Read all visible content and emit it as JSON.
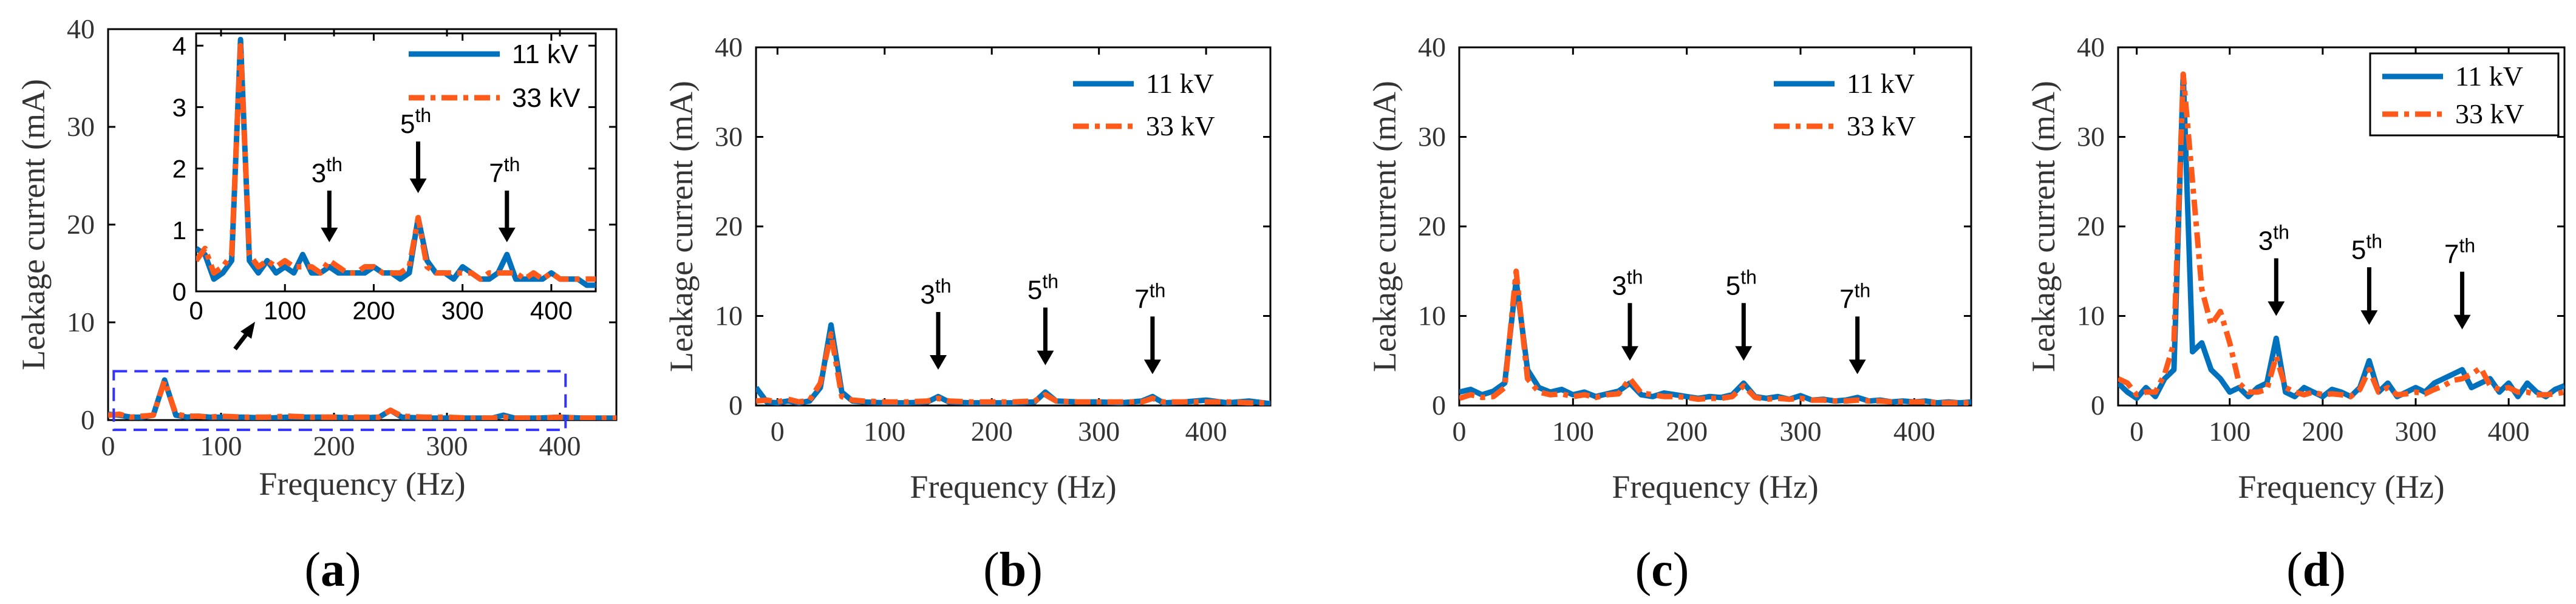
{
  "colors": {
    "kv11": "#0072bd",
    "kv33": "#ff5a1a",
    "zoom_box": "#3333ff"
  },
  "chart_data": [
    {
      "panel": "(a)",
      "type": "line",
      "xlabel": "Frequency (Hz)",
      "ylabel": "Leakage current (mA)",
      "xlim": [
        0,
        450
      ],
      "ylim": [
        0,
        40
      ],
      "xticks": [
        "0",
        "100",
        "200",
        "300",
        "400"
      ],
      "yticks": [
        "0",
        "10",
        "20",
        "30",
        "40"
      ],
      "legend": {
        "placement": "top-right"
      },
      "series": [
        {
          "name": "11 kV",
          "x": [
            0,
            10,
            20,
            30,
            40,
            50,
            60,
            70,
            80,
            90,
            100,
            120,
            140,
            160,
            180,
            200,
            220,
            240,
            250,
            260,
            280,
            300,
            320,
            340,
            350,
            360,
            380,
            400,
            420,
            450
          ],
          "values": [
            0.6,
            0.5,
            0.3,
            0.3,
            0.5,
            4.1,
            0.5,
            0.3,
            0.4,
            0.3,
            0.3,
            0.3,
            0.2,
            0.3,
            0.3,
            0.3,
            0.2,
            0.3,
            1.0,
            0.3,
            0.2,
            0.2,
            0.2,
            0.2,
            0.5,
            0.2,
            0.2,
            0.3,
            0.2,
            0.2
          ]
        },
        {
          "name": "33 kV",
          "x": [
            0,
            10,
            20,
            30,
            40,
            50,
            60,
            70,
            80,
            90,
            100,
            120,
            140,
            160,
            180,
            200,
            220,
            240,
            250,
            260,
            280,
            300,
            320,
            340,
            350,
            360,
            380,
            400,
            420,
            450
          ],
          "values": [
            0.5,
            0.6,
            0.3,
            0.4,
            0.5,
            4.0,
            0.6,
            0.4,
            0.4,
            0.3,
            0.4,
            0.3,
            0.3,
            0.4,
            0.3,
            0.3,
            0.3,
            0.3,
            1.0,
            0.4,
            0.3,
            0.3,
            0.2,
            0.2,
            0.3,
            0.2,
            0.2,
            0.3,
            0.2,
            0.2
          ]
        }
      ],
      "inset": {
        "xlim": [
          0,
          450
        ],
        "ylim": [
          0,
          4.2
        ],
        "xticks": [
          "0",
          "100",
          "200",
          "300",
          "400"
        ],
        "yticks": [
          "0",
          "1",
          "2",
          "3",
          "4"
        ],
        "series": [
          {
            "name": "11 kV",
            "x": [
              0,
              10,
              20,
              30,
              40,
              50,
              60,
              70,
              80,
              90,
              100,
              110,
              120,
              130,
              140,
              150,
              160,
              170,
              180,
              190,
              200,
              210,
              220,
              230,
              240,
              250,
              260,
              270,
              280,
              290,
              300,
              310,
              320,
              330,
              340,
              350,
              360,
              370,
              380,
              390,
              400,
              410,
              420,
              430,
              440,
              450
            ],
            "values": [
              0.7,
              0.6,
              0.2,
              0.3,
              0.5,
              4.1,
              0.5,
              0.3,
              0.5,
              0.3,
              0.4,
              0.3,
              0.6,
              0.3,
              0.3,
              0.4,
              0.3,
              0.3,
              0.3,
              0.3,
              0.4,
              0.3,
              0.3,
              0.2,
              0.3,
              1.2,
              0.5,
              0.3,
              0.3,
              0.2,
              0.4,
              0.3,
              0.2,
              0.2,
              0.3,
              0.6,
              0.2,
              0.2,
              0.2,
              0.2,
              0.3,
              0.2,
              0.2,
              0.2,
              0.1,
              0.1
            ]
          },
          {
            "name": "33 kV",
            "x": [
              0,
              10,
              20,
              30,
              40,
              50,
              60,
              70,
              80,
              90,
              100,
              110,
              120,
              130,
              140,
              150,
              160,
              170,
              180,
              190,
              200,
              210,
              220,
              230,
              240,
              250,
              260,
              270,
              280,
              290,
              300,
              310,
              320,
              330,
              340,
              350,
              360,
              370,
              380,
              390,
              400,
              410,
              420,
              430,
              440,
              450
            ],
            "values": [
              0.5,
              0.7,
              0.3,
              0.4,
              0.6,
              4.0,
              0.6,
              0.4,
              0.5,
              0.4,
              0.5,
              0.4,
              0.4,
              0.4,
              0.3,
              0.5,
              0.4,
              0.3,
              0.3,
              0.4,
              0.4,
              0.3,
              0.3,
              0.3,
              0.4,
              1.2,
              0.4,
              0.3,
              0.3,
              0.3,
              0.3,
              0.3,
              0.2,
              0.3,
              0.3,
              0.3,
              0.3,
              0.2,
              0.3,
              0.2,
              0.3,
              0.2,
              0.2,
              0.2,
              0.2,
              0.2
            ]
          }
        ],
        "annotations": [
          {
            "base": "3",
            "sup": "th",
            "x": 150,
            "y": 0.8
          },
          {
            "base": "5",
            "sup": "th",
            "x": 250,
            "y": 1.6
          },
          {
            "base": "7",
            "sup": "th",
            "x": 350,
            "y": 0.8
          }
        ]
      }
    },
    {
      "panel": "(b)",
      "type": "line",
      "xlabel": "Frequency (Hz)",
      "ylabel": "Leakage current (mA)",
      "xlim": [
        -20,
        460
      ],
      "ylim": [
        0,
        40
      ],
      "xticks": [
        "0",
        "100",
        "200",
        "300",
        "400"
      ],
      "yticks": [
        "0",
        "10",
        "20",
        "30",
        "40"
      ],
      "legend": {
        "placement": "top-right"
      },
      "series": [
        {
          "name": "11 kV",
          "x": [
            -20,
            -10,
            0,
            10,
            20,
            30,
            40,
            50,
            60,
            70,
            80,
            100,
            120,
            140,
            150,
            160,
            180,
            200,
            220,
            240,
            250,
            260,
            280,
            300,
            320,
            340,
            350,
            360,
            380,
            400,
            420,
            440,
            460
          ],
          "values": [
            2.0,
            0.4,
            0.3,
            0.5,
            0.3,
            0.5,
            2.0,
            9.0,
            1.5,
            0.5,
            0.4,
            0.3,
            0.3,
            0.4,
            1.0,
            0.4,
            0.3,
            0.3,
            0.3,
            0.4,
            1.5,
            0.5,
            0.4,
            0.4,
            0.3,
            0.5,
            1.0,
            0.3,
            0.4,
            0.6,
            0.3,
            0.5,
            0.2
          ]
        },
        {
          "name": "33 kV",
          "x": [
            -20,
            -10,
            0,
            10,
            20,
            30,
            40,
            50,
            60,
            70,
            80,
            100,
            120,
            140,
            150,
            160,
            180,
            200,
            220,
            240,
            250,
            260,
            280,
            300,
            320,
            340,
            350,
            360,
            380,
            400,
            420,
            440,
            460
          ],
          "values": [
            0.5,
            0.6,
            0.4,
            0.7,
            0.4,
            0.6,
            2.5,
            8.0,
            1.0,
            0.6,
            0.5,
            0.4,
            0.4,
            0.5,
            0.8,
            0.5,
            0.4,
            0.4,
            0.4,
            0.5,
            1.2,
            0.5,
            0.4,
            0.4,
            0.4,
            0.4,
            0.8,
            0.4,
            0.4,
            0.4,
            0.4,
            0.3,
            0.3
          ]
        }
      ],
      "annotations": [
        {
          "base": "3",
          "sup": "th",
          "x": 150,
          "y": 4
        },
        {
          "base": "5",
          "sup": "th",
          "x": 250,
          "y": 4.5
        },
        {
          "base": "7",
          "sup": "th",
          "x": 350,
          "y": 3.5
        }
      ]
    },
    {
      "panel": "(c)",
      "type": "line",
      "xlabel": "Frequency (Hz)",
      "ylabel": "Leakage current (mA)",
      "xlim": [
        0,
        450
      ],
      "ylim": [
        0,
        40
      ],
      "xticks": [
        "0",
        "100",
        "200",
        "300",
        "400"
      ],
      "yticks": [
        "0",
        "10",
        "20",
        "30",
        "40"
      ],
      "legend": {
        "placement": "top-right"
      },
      "series": [
        {
          "name": "11 kV",
          "x": [
            0,
            10,
            20,
            30,
            40,
            50,
            60,
            70,
            80,
            90,
            100,
            110,
            120,
            130,
            140,
            150,
            160,
            170,
            180,
            190,
            200,
            210,
            220,
            230,
            240,
            250,
            260,
            270,
            280,
            290,
            300,
            310,
            320,
            330,
            340,
            350,
            360,
            370,
            380,
            390,
            400,
            410,
            420,
            430,
            440,
            450
          ],
          "values": [
            1.5,
            1.8,
            1.2,
            1.6,
            2.5,
            14.0,
            4.0,
            2.0,
            1.5,
            1.8,
            1.2,
            1.5,
            1.0,
            1.3,
            1.6,
            2.5,
            1.2,
            1.0,
            1.4,
            1.2,
            1.0,
            0.8,
            1.0,
            0.9,
            1.2,
            2.5,
            1.0,
            0.8,
            1.0,
            0.7,
            1.1,
            0.6,
            0.7,
            0.5,
            0.6,
            0.9,
            0.5,
            0.6,
            0.4,
            0.5,
            0.4,
            0.5,
            0.3,
            0.4,
            0.3,
            0.4
          ]
        },
        {
          "name": "33 kV",
          "x": [
            0,
            10,
            20,
            30,
            40,
            50,
            60,
            70,
            80,
            90,
            100,
            110,
            120,
            130,
            140,
            150,
            160,
            170,
            180,
            190,
            200,
            210,
            220,
            230,
            240,
            250,
            260,
            270,
            280,
            290,
            300,
            310,
            320,
            330,
            340,
            350,
            360,
            370,
            380,
            390,
            400,
            410,
            420,
            430,
            440,
            450
          ],
          "values": [
            0.8,
            1.2,
            0.9,
            1.0,
            2.0,
            15.0,
            3.0,
            1.5,
            1.2,
            1.3,
            1.0,
            1.2,
            0.9,
            1.2,
            1.3,
            3.0,
            1.4,
            1.2,
            1.0,
            1.0,
            0.9,
            0.7,
            0.8,
            0.8,
            1.0,
            2.2,
            0.9,
            0.7,
            0.8,
            0.7,
            0.8,
            0.6,
            0.6,
            0.5,
            0.5,
            0.6,
            0.5,
            0.5,
            0.4,
            0.4,
            0.4,
            0.4,
            0.3,
            0.3,
            0.3,
            0.3
          ]
        }
      ],
      "annotations": [
        {
          "base": "3",
          "sup": "th",
          "x": 150,
          "y": 5
        },
        {
          "base": "5",
          "sup": "th",
          "x": 250,
          "y": 5
        },
        {
          "base": "7",
          "sup": "th",
          "x": 350,
          "y": 3.5
        }
      ]
    },
    {
      "panel": "(d)",
      "type": "line",
      "xlabel": "Frequency (Hz)",
      "ylabel": "Leakage current (mA)",
      "xlim": [
        -20,
        460
      ],
      "ylim": [
        0,
        40
      ],
      "xticks": [
        "0",
        "100",
        "200",
        "300",
        "400"
      ],
      "yticks": [
        "0",
        "10",
        "20",
        "30",
        "40"
      ],
      "legend": {
        "placement": "top-right"
      },
      "series": [
        {
          "name": "11 kV",
          "x": [
            -20,
            -10,
            0,
            10,
            20,
            30,
            40,
            50,
            60,
            70,
            80,
            90,
            100,
            110,
            120,
            130,
            140,
            150,
            160,
            170,
            180,
            190,
            200,
            210,
            220,
            230,
            240,
            250,
            260,
            270,
            280,
            290,
            300,
            310,
            320,
            330,
            340,
            350,
            360,
            370,
            380,
            390,
            400,
            410,
            420,
            430,
            440,
            450,
            460
          ],
          "values": [
            2.5,
            1.5,
            0.8,
            2.0,
            1.0,
            3.0,
            4.0,
            37.0,
            6.0,
            7.0,
            4.0,
            3.0,
            1.5,
            2.0,
            1.0,
            2.0,
            2.5,
            7.5,
            1.5,
            1.0,
            2.0,
            1.5,
            1.0,
            1.8,
            1.5,
            1.0,
            2.0,
            5.0,
            1.5,
            2.5,
            1.0,
            1.5,
            2.0,
            1.5,
            2.5,
            3.0,
            3.5,
            4.0,
            2.0,
            2.5,
            3.0,
            1.5,
            2.5,
            1.0,
            2.5,
            1.5,
            1.0,
            1.8,
            2.2
          ]
        },
        {
          "name": "33 kV",
          "x": [
            -20,
            -10,
            0,
            10,
            20,
            30,
            40,
            50,
            60,
            70,
            80,
            90,
            100,
            110,
            120,
            130,
            140,
            150,
            160,
            170,
            180,
            190,
            200,
            210,
            220,
            230,
            240,
            250,
            260,
            270,
            280,
            290,
            300,
            310,
            320,
            330,
            340,
            350,
            360,
            370,
            380,
            390,
            400,
            410,
            420,
            430,
            440,
            450,
            460
          ],
          "values": [
            3.0,
            2.5,
            1.2,
            1.5,
            1.5,
            3.5,
            7.0,
            37.0,
            25.0,
            13.0,
            9.0,
            10.5,
            7.0,
            2.5,
            1.5,
            1.5,
            1.8,
            5.5,
            2.0,
            1.5,
            1.2,
            1.5,
            1.2,
            1.3,
            1.2,
            1.0,
            1.8,
            4.0,
            1.5,
            2.0,
            1.2,
            1.3,
            1.5,
            1.3,
            1.8,
            2.2,
            2.8,
            3.0,
            3.5,
            4.2,
            2.2,
            1.8,
            2.0,
            1.5,
            1.5,
            1.2,
            1.2,
            1.3,
            1.5
          ]
        }
      ],
      "annotations": [
        {
          "base": "3",
          "sup": "th",
          "x": 150,
          "y": 10
        },
        {
          "base": "5",
          "sup": "th",
          "x": 250,
          "y": 9
        },
        {
          "base": "7",
          "sup": "th",
          "x": 350,
          "y": 8.5
        }
      ]
    }
  ]
}
